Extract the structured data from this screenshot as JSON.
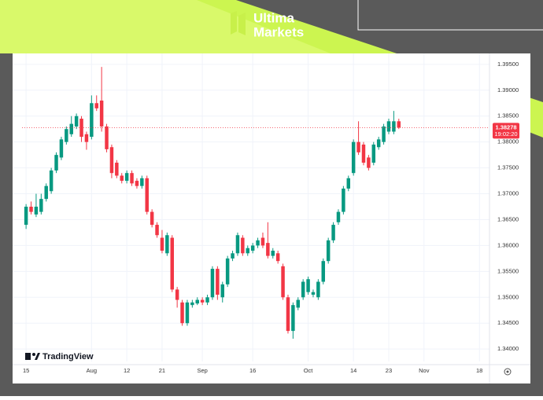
{
  "brand": {
    "line1": "Ultima",
    "line2": "Markets"
  },
  "watermark": "TradingView",
  "chart_data": {
    "type": "candlestick",
    "x": [
      0,
      1,
      2,
      3,
      4,
      5,
      6,
      7,
      8,
      9,
      10,
      11,
      12,
      13,
      14,
      15,
      16,
      17,
      18,
      19,
      20,
      21,
      22,
      23,
      24,
      25,
      26,
      27,
      28,
      29,
      30,
      31,
      32,
      33,
      34,
      35,
      36,
      37,
      38,
      39,
      40,
      41,
      42,
      43,
      44,
      45,
      46,
      47,
      48,
      49,
      50,
      51,
      52,
      53,
      54,
      55,
      56,
      57,
      58,
      59,
      60,
      61,
      62,
      63,
      64,
      65,
      66,
      67,
      68,
      69,
      70,
      71,
      72,
      73,
      74
    ],
    "open": [
      1.364,
      1.3675,
      1.366,
      1.3665,
      1.369,
      1.3705,
      1.3745,
      1.377,
      1.38,
      1.3815,
      1.383,
      1.3845,
      1.3815,
      1.381,
      1.3875,
      1.388,
      1.383,
      1.379,
      1.376,
      1.3735,
      1.3725,
      1.374,
      1.3725,
      1.3715,
      1.373,
      1.3665,
      1.364,
      1.3615,
      1.3585,
      1.3615,
      1.3515,
      1.349,
      1.345,
      1.3485,
      1.3488,
      1.3495,
      1.349,
      1.35,
      1.3555,
      1.35,
      1.3525,
      1.3575,
      1.3585,
      1.3615,
      1.3585,
      1.359,
      1.36,
      1.3615,
      1.3605,
      1.358,
      1.3585,
      1.356,
      1.35,
      1.3435,
      1.348,
      1.35,
      1.351,
      1.3505,
      1.35,
      1.353,
      1.357,
      1.361,
      1.3645,
      1.3665,
      1.371,
      1.374,
      1.38,
      1.3795,
      1.377,
      1.376,
      1.379,
      1.38,
      1.382,
      1.382,
      1.384
    ],
    "high": [
      1.368,
      1.3685,
      1.37,
      1.37,
      1.372,
      1.375,
      1.378,
      1.381,
      1.383,
      1.385,
      1.3855,
      1.385,
      1.382,
      1.389,
      1.389,
      1.3945,
      1.3835,
      1.3795,
      1.3765,
      1.374,
      1.3745,
      1.3745,
      1.373,
      1.3735,
      1.3735,
      1.367,
      1.3645,
      1.363,
      1.3625,
      1.362,
      1.352,
      1.3495,
      1.3495,
      1.3495,
      1.35,
      1.35,
      1.3505,
      1.356,
      1.356,
      1.353,
      1.358,
      1.359,
      1.3625,
      1.362,
      1.36,
      1.3605,
      1.3615,
      1.3625,
      1.3645,
      1.3595,
      1.359,
      1.3565,
      1.3505,
      1.349,
      1.35,
      1.3535,
      1.354,
      1.3515,
      1.3535,
      1.3575,
      1.3615,
      1.3645,
      1.367,
      1.3715,
      1.3735,
      1.3805,
      1.384,
      1.38,
      1.3775,
      1.38,
      1.381,
      1.3835,
      1.3845,
      1.386,
      1.3845
    ],
    "low": [
      1.3632,
      1.366,
      1.3655,
      1.366,
      1.3685,
      1.37,
      1.374,
      1.3765,
      1.3795,
      1.381,
      1.3825,
      1.38,
      1.3785,
      1.3805,
      1.386,
      1.382,
      1.378,
      1.373,
      1.373,
      1.372,
      1.372,
      1.3715,
      1.371,
      1.371,
      1.366,
      1.3635,
      1.3615,
      1.3585,
      1.358,
      1.351,
      1.348,
      1.3445,
      1.3445,
      1.348,
      1.3485,
      1.3485,
      1.3485,
      1.3495,
      1.3495,
      1.349,
      1.352,
      1.357,
      1.358,
      1.358,
      1.358,
      1.3585,
      1.3595,
      1.3595,
      1.3575,
      1.3575,
      1.3565,
      1.3495,
      1.343,
      1.342,
      1.3475,
      1.3495,
      1.3505,
      1.35,
      1.3495,
      1.3525,
      1.3565,
      1.3605,
      1.364,
      1.366,
      1.3705,
      1.3735,
      1.3775,
      1.3755,
      1.3745,
      1.3755,
      1.3785,
      1.3795,
      1.3815,
      1.3815,
      1.3825
    ],
    "close": [
      1.3675,
      1.3665,
      1.3675,
      1.369,
      1.3715,
      1.3745,
      1.3775,
      1.3805,
      1.3825,
      1.3835,
      1.385,
      1.381,
      1.38,
      1.3875,
      1.3865,
      1.383,
      1.3786,
      1.374,
      1.3735,
      1.3725,
      1.374,
      1.372,
      1.3715,
      1.373,
      1.3665,
      1.364,
      1.362,
      1.359,
      1.362,
      1.3515,
      1.3495,
      1.345,
      1.349,
      1.349,
      1.3495,
      1.349,
      1.35,
      1.3555,
      1.3505,
      1.3525,
      1.3575,
      1.3585,
      1.362,
      1.3585,
      1.3595,
      1.36,
      1.361,
      1.36,
      1.358,
      1.359,
      1.357,
      1.35,
      1.3435,
      1.3485,
      1.3495,
      1.353,
      1.3535,
      1.351,
      1.353,
      1.357,
      1.361,
      1.364,
      1.3665,
      1.371,
      1.373,
      1.38,
      1.378,
      1.376,
      1.375,
      1.3795,
      1.3805,
      1.383,
      1.384,
      1.384,
      1.38278
    ],
    "up_color": "#089981",
    "down_color": "#f23645",
    "last_price": {
      "value": 1.38278,
      "label": "1.38278"
    },
    "countdown": "19:02:20",
    "xlim": [
      -0.8,
      92
    ],
    "xticks": [
      {
        "value": 0,
        "label": "15"
      },
      {
        "value": 13,
        "label": "Aug"
      },
      {
        "value": 20,
        "label": "12"
      },
      {
        "value": 27,
        "label": "21"
      },
      {
        "value": 35,
        "label": "Sep"
      },
      {
        "value": 45,
        "label": "16"
      },
      {
        "value": 56,
        "label": "Oct"
      },
      {
        "value": 65,
        "label": "14"
      },
      {
        "value": 72,
        "label": "23"
      },
      {
        "value": 79,
        "label": "Nov"
      },
      {
        "value": 90,
        "label": "18"
      }
    ],
    "ylim": [
      1.3379,
      1.3968
    ],
    "yticks": [
      {
        "value": 1.34,
        "label": "1.34000"
      },
      {
        "value": 1.345,
        "label": "1.34500"
      },
      {
        "value": 1.35,
        "label": "1.35000"
      },
      {
        "value": 1.355,
        "label": "1.35500"
      },
      {
        "value": 1.36,
        "label": "1.36000"
      },
      {
        "value": 1.365,
        "label": "1.36500"
      },
      {
        "value": 1.37,
        "label": "1.37000"
      },
      {
        "value": 1.375,
        "label": "1.37500"
      },
      {
        "value": 1.38,
        "label": "1.38000"
      },
      {
        "value": 1.385,
        "label": "1.38500"
      },
      {
        "value": 1.39,
        "label": "1.39000"
      },
      {
        "value": 1.395,
        "label": "1.39500"
      }
    ],
    "grid": true
  }
}
